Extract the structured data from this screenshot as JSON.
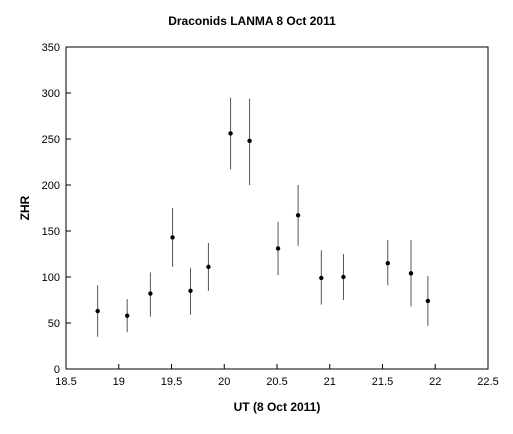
{
  "chart_data": {
    "type": "scatter",
    "title": "Draconids LANMA 8 Oct 2011",
    "xlabel": "UT (8 Oct 2011)",
    "ylabel": "ZHR",
    "xlim": [
      18.5,
      22.5
    ],
    "ylim": [
      0,
      350
    ],
    "xticks": [
      18.5,
      19,
      19.5,
      20,
      20.5,
      21,
      21.5,
      22,
      22.5
    ],
    "xtick_labels": [
      "18.5",
      "19",
      "19.5",
      "20",
      "20.5",
      "21",
      "21.5",
      "22",
      "22.5"
    ],
    "yticks": [
      0,
      50,
      100,
      150,
      200,
      250,
      300,
      350
    ],
    "ytick_labels": [
      "0",
      "50",
      "100",
      "150",
      "200",
      "250",
      "300",
      "350"
    ],
    "grid": false,
    "series": [
      {
        "x": [
          18.8,
          19.08,
          19.3,
          19.51,
          19.68,
          19.85,
          20.06,
          20.24,
          20.51,
          20.7,
          20.92,
          21.13,
          21.55,
          21.77,
          21.93
        ],
        "y": [
          63,
          58,
          82,
          143,
          85,
          111,
          256,
          248,
          131,
          167,
          99,
          100,
          115,
          104,
          74
        ],
        "y_low": [
          35,
          40,
          57,
          111,
          59,
          85,
          217,
          200,
          102,
          134,
          70,
          75,
          91,
          68,
          47
        ],
        "y_high": [
          91,
          76,
          105,
          175,
          110,
          137,
          295,
          294,
          160,
          200,
          129,
          125,
          140,
          140,
          101
        ],
        "error_bars": true
      }
    ]
  }
}
